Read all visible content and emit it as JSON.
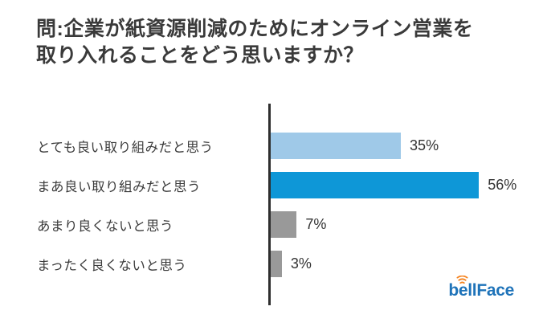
{
  "title": {
    "line1": "問:企業が紙資源削減のためにオンライン営業を",
    "line2": "取り入れることをどう思いますか？"
  },
  "chart_data": {
    "type": "bar",
    "orientation": "horizontal",
    "title": "問:企業が紙資源削減のためにオンライン営業を取り入れることをどう思いますか？",
    "categories": [
      "とても良い取り組みだと思う",
      "まあ良い取り組みだと思う",
      "あまり良くないと思う",
      "まったく良くないと思う"
    ],
    "values": [
      35,
      56,
      7,
      3
    ],
    "value_labels": [
      "35%",
      "56%",
      "7%",
      "3%"
    ],
    "bar_colors": [
      "#9fc9e8",
      "#0e97d7",
      "#999999",
      "#999999"
    ],
    "unit": "%",
    "xlim": [
      0,
      60
    ],
    "grid": false,
    "legend": false,
    "axis_color": "#2e2e2e"
  },
  "logo": {
    "text": "bellFace",
    "text_color": "#1e73b9",
    "accent_color": "#f5831f"
  }
}
